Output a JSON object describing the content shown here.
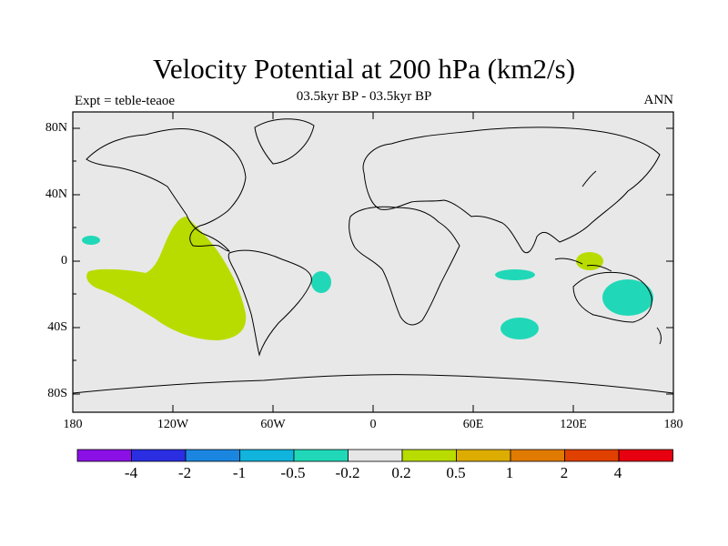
{
  "header": {
    "title": "Velocity Potential at 200 hPa (km2/s)",
    "subtitle": "03.5kyr BP - 03.5kyr BP",
    "left_label": "Expt = teble-teaoe",
    "right_label": "ANN"
  },
  "axes": {
    "lat_ticks": [
      "80N",
      "40N",
      "0",
      "40S",
      "80S"
    ],
    "lon_ticks": [
      "180",
      "120W",
      "60W",
      "0",
      "60E",
      "120E",
      "180"
    ]
  },
  "colorbar": {
    "labels": [
      "-4",
      "-2",
      "-1",
      "-0.5",
      "-0.2",
      "0.2",
      "0.5",
      "1",
      "2",
      "4"
    ],
    "colors": [
      "#8a10e6",
      "#2a2ee0",
      "#1a86e0",
      "#10b4dc",
      "#20d8b8",
      "#e6e6e6",
      "#b8dc00",
      "#dcac00",
      "#e07a00",
      "#e04000",
      "#e60010"
    ]
  },
  "map_colors": {
    "background": "#e8e8e8",
    "positive": "#b8dc00",
    "negative": "#20d8b8"
  }
}
